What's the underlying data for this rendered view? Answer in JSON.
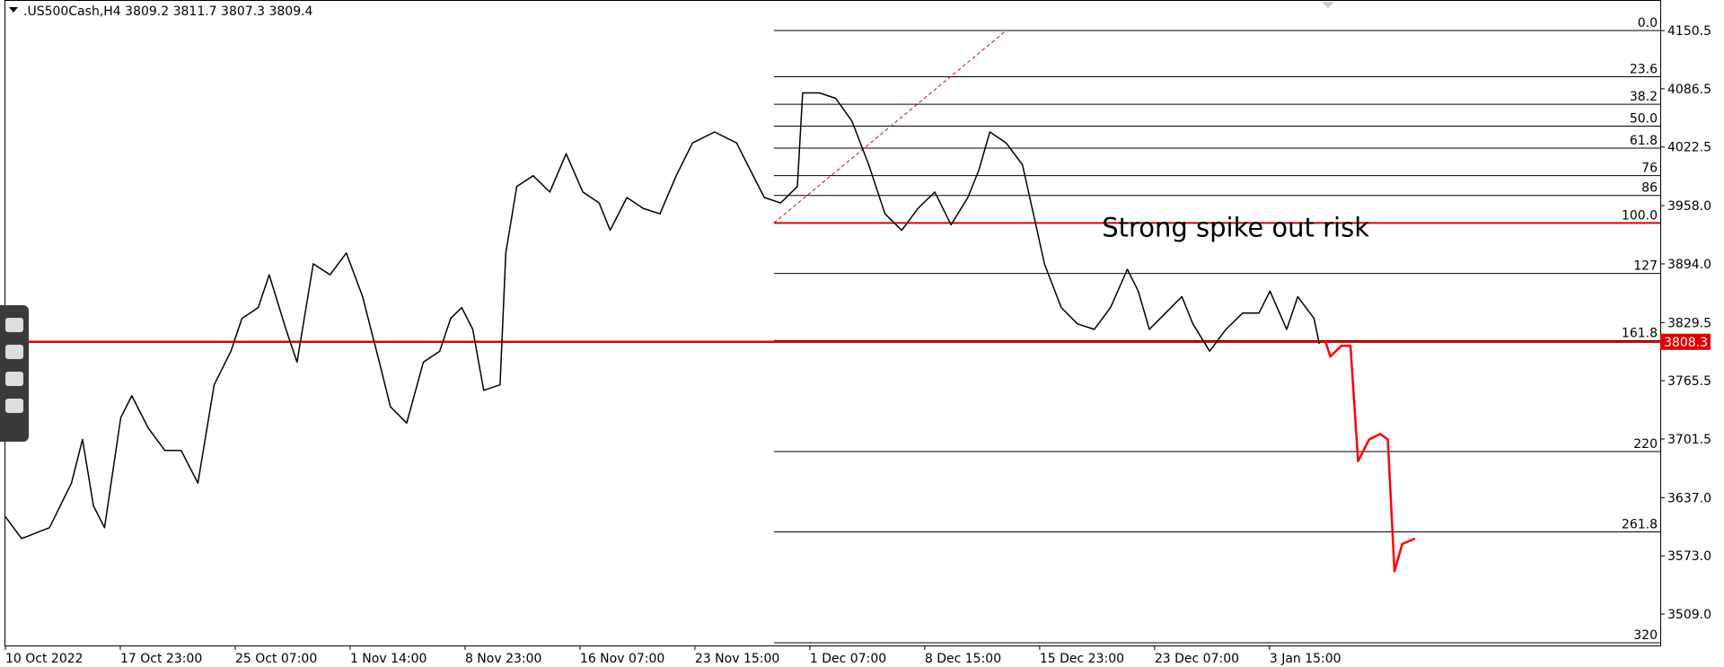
{
  "chart_data": {
    "type": "line",
    "title": ".US500Cash,H4  3809.2 3811.7 3807.3 3809.4",
    "annotation": {
      "text": "Strong spike out risk",
      "x": 229,
      "y": 3924
    },
    "last_price": 3808.3,
    "xlim": [
      0,
      345.6
    ],
    "ylim": [
      3474.5,
      4184.1
    ],
    "yticks": [
      4150.5,
      4086.5,
      4022.5,
      {
        "value": 3958,
        "label": "3958.0"
      },
      {
        "value": 3894,
        "label": "3894.0"
      },
      3829.5,
      3765.5,
      3701.5,
      {
        "value": 3637,
        "label": "3637.0"
      },
      {
        "value": 3573,
        "label": "3573.0"
      },
      {
        "value": 3509,
        "label": "3509.0"
      }
    ],
    "xticks": [
      {
        "value": 0,
        "label": "10 Oct 2022"
      },
      {
        "value": 24,
        "label": "17 Oct 23:00"
      },
      {
        "value": 48,
        "label": "25 Oct 07:00"
      },
      {
        "value": 72,
        "label": "1 Nov 14:00"
      },
      {
        "value": 96,
        "label": "8 Nov 23:00"
      },
      {
        "value": 120,
        "label": "16 Nov 07:00"
      },
      {
        "value": 144,
        "label": "23 Nov 15:00"
      },
      {
        "value": 168,
        "label": "1 Dec 07:00"
      },
      {
        "value": 192,
        "label": "8 Dec 15:00"
      },
      {
        "value": 216,
        "label": "15 Dec 23:00"
      },
      {
        "value": 240,
        "label": "23 Dec 07:00"
      },
      {
        "value": 264,
        "label": "3 Jan 15:00"
      }
    ],
    "fib_start_x": 160.5,
    "fib_levels": [
      {
        "label": "0.0",
        "value": 4150.5
      },
      {
        "label": "23.6",
        "value": 4099.7
      },
      {
        "label": "38.2",
        "value": 4069.5
      },
      {
        "label": "50.0",
        "value": 4045.4
      },
      {
        "label": "61.8",
        "value": 4021.2
      },
      {
        "label": "76",
        "value": 3991.0
      },
      {
        "label": "86",
        "value": 3969.2
      },
      {
        "label": "100.0",
        "value": 3939.0
      },
      {
        "label": "127",
        "value": 3883.4
      },
      {
        "label": "161.8",
        "value": 3809.7
      },
      {
        "label": "220",
        "value": 3687.7
      },
      {
        "label": "261.8",
        "value": 3599.4
      },
      {
        "label": "320",
        "value": 3477.4
      }
    ],
    "trendline": {
      "x": [
        160.5,
        209
      ],
      "y": [
        3939,
        4150.5
      ],
      "color": "#e00000"
    },
    "level_color": "#e00000",
    "series": [
      {
        "color": "#000000",
        "x": [
          0,
          3.4,
          9.2,
          13.8,
          16.1,
          18.4,
          20.7,
          24.1,
          26.4,
          29.9,
          33.3,
          36.7,
          40.2,
          43.6,
          47.1,
          49.4,
          52.8,
          55.1,
          58.6,
          60.9,
          64.3,
          67.8,
          71.2,
          74.6,
          78.1,
          80.4,
          83.8,
          87.3,
          90.7,
          93.0,
          95.3,
          97.6,
          99.9,
          103.3,
          104.5,
          106.8,
          110.2,
          113.7,
          117.1,
          120.6,
          124.0,
          126.3,
          129.8,
          133.2,
          136.7,
          140.1,
          143.5,
          148.1,
          152.7,
          155.0,
          158.5,
          161.9,
          165.4,
          166.5,
          170.0,
          173.4,
          176.8,
          180.3,
          183.7,
          187.2,
          190.6,
          194.1,
          197.5,
          201.0,
          203.3,
          205.6,
          209.0,
          212.4,
          214.7,
          217.0,
          220.5,
          223.9,
          227.4,
          230.8,
          234.3,
          236.6,
          238.9,
          242.3,
          245.7,
          248.0,
          251.5,
          254.9,
          258.4,
          261.8,
          264.1,
          267.6,
          269.9,
          273.3,
          274.4
        ],
        "values": [
          3616,
          3592,
          3604,
          3653,
          3701,
          3628,
          3604,
          3725,
          3749,
          3713,
          3689,
          3689,
          3653,
          3761,
          3798,
          3834,
          3846,
          3882,
          3822,
          3786,
          3894,
          3882,
          3906,
          3858,
          3786,
          3737,
          3719,
          3786,
          3798,
          3834,
          3846,
          3822,
          3755,
          3761,
          3906,
          3979,
          3991,
          3973,
          4015,
          3973,
          3961,
          3931,
          3967,
          3955,
          3949,
          3991,
          4027,
          4039,
          4027,
          4003,
          3967,
          3961,
          3979,
          4082,
          4082,
          4076,
          4051,
          4003,
          3949,
          3931,
          3955,
          3973,
          3937,
          3967,
          3997,
          4039,
          4027,
          4003,
          3949,
          3894,
          3846,
          3828,
          3822,
          3846,
          3888,
          3864,
          3822,
          3840,
          3858,
          3828,
          3798,
          3822,
          3840,
          3840,
          3864,
          3822,
          3858,
          3834,
          3806
        ]
      },
      {
        "color": "#ff0000",
        "x": [
          275.6,
          276.7,
          279.0,
          280.9,
          282.5,
          284.8,
          287.1,
          288.7,
          290.1,
          291.7,
          294.4
        ],
        "values": [
          3810,
          3792,
          3804,
          3804,
          3677,
          3701,
          3707,
          3701,
          3556,
          3586,
          3592
        ]
      }
    ]
  }
}
